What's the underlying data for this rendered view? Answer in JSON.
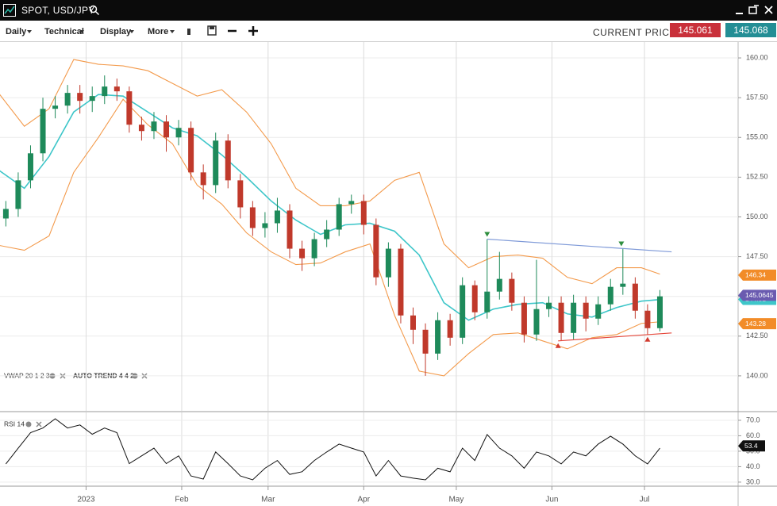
{
  "window": {
    "title": "SPOT, USD/JPY"
  },
  "toolbar": {
    "menus": [
      "Daily",
      "Technical",
      "Display",
      "More"
    ],
    "current_price_label": "CURRENT PRICE:",
    "bid": "145.061",
    "ask": "145.068"
  },
  "indicators": {
    "main": [
      "VWAP 20 1 2 3",
      "AUTO TREND 4 4 2"
    ],
    "rsi": "RSI 14"
  },
  "chart_data": [
    {
      "type": "candlestick",
      "x": [
        -25,
        -21,
        -17,
        -13,
        -9,
        -5,
        -1,
        3,
        7,
        11,
        15,
        19,
        23,
        27,
        31,
        35,
        39,
        43,
        47,
        51,
        55,
        59,
        63,
        67,
        71,
        75,
        79,
        83,
        87,
        91,
        95,
        99,
        103,
        107,
        111,
        115,
        119,
        123,
        127,
        131,
        135,
        139,
        143,
        147,
        151,
        155,
        159,
        163,
        167,
        171,
        175,
        179,
        183,
        187
      ],
      "open": [
        149.9,
        150.5,
        152.3,
        154.0,
        156.8,
        157.0,
        157.8,
        157.3,
        157.6,
        158.2,
        157.9,
        155.8,
        155.4,
        156.0,
        155.0,
        155.6,
        152.8,
        152.0,
        154.8,
        152.3,
        150.6,
        149.3,
        149.6,
        150.4,
        148.0,
        147.4,
        148.6,
        149.2,
        150.8,
        151.0,
        149.5,
        146.2,
        148.0,
        143.8,
        142.9,
        141.4,
        143.5,
        142.4,
        145.7,
        144.0,
        145.3,
        146.1,
        144.6,
        142.6,
        144.2,
        144.6,
        142.7,
        144.6,
        143.6,
        144.5,
        145.6,
        145.8,
        144.1,
        143.0
      ],
      "high": [
        151.0,
        152.8,
        154.5,
        157.5,
        157.6,
        158.3,
        158.3,
        158.2,
        158.9,
        158.7,
        158.2,
        156.3,
        156.6,
        156.4,
        156.1,
        156.0,
        153.3,
        155.3,
        155.2,
        152.7,
        151.0,
        150.3,
        151.2,
        150.8,
        148.5,
        149.0,
        149.8,
        151.2,
        151.4,
        151.4,
        149.9,
        148.4,
        148.3,
        144.3,
        143.3,
        144.0,
        143.9,
        146.2,
        146.0,
        148.6,
        147.8,
        146.5,
        145.0,
        147.3,
        145.0,
        145.0,
        145.1,
        145.0,
        145.0,
        146.1,
        148.0,
        146.2,
        144.5,
        145.4
      ],
      "low": [
        149.4,
        150.0,
        151.8,
        153.5,
        156.2,
        156.5,
        156.5,
        156.6,
        157.1,
        157.3,
        155.3,
        154.8,
        154.9,
        154.1,
        154.5,
        152.3,
        151.1,
        151.5,
        151.8,
        149.9,
        148.8,
        148.7,
        149.0,
        147.4,
        146.6,
        146.9,
        148.1,
        148.8,
        150.2,
        148.9,
        145.7,
        145.6,
        143.3,
        142.0,
        140.0,
        141.0,
        141.9,
        142.0,
        143.5,
        143.6,
        144.8,
        144.1,
        142.1,
        142.2,
        143.7,
        142.2,
        142.3,
        142.8,
        143.2,
        144.1,
        145.1,
        143.6,
        142.6,
        142.8
      ],
      "close": [
        150.5,
        152.3,
        154.0,
        156.8,
        157.0,
        157.8,
        157.3,
        157.6,
        158.2,
        157.9,
        155.8,
        155.4,
        156.0,
        155.0,
        155.6,
        152.8,
        152.0,
        154.8,
        152.3,
        150.6,
        149.3,
        149.6,
        150.4,
        148.0,
        147.4,
        148.6,
        149.2,
        150.8,
        151.0,
        149.5,
        146.2,
        148.0,
        143.8,
        142.9,
        141.4,
        143.5,
        142.4,
        145.7,
        144.0,
        145.3,
        146.1,
        144.6,
        142.6,
        144.2,
        144.6,
        142.7,
        144.6,
        143.6,
        144.5,
        145.6,
        145.8,
        144.1,
        143.0,
        145.0
      ],
      "up_color": "#1e8a5a",
      "down_color": "#c0392b",
      "band_x": [
        -27,
        -19,
        -11,
        -3,
        5,
        13,
        21,
        29,
        37,
        45,
        53,
        61,
        69,
        77,
        85,
        93,
        101,
        109,
        117,
        125,
        133,
        141,
        149,
        157,
        165,
        173,
        181,
        187
      ],
      "bands": [
        {
          "color": "#f39a4b",
          "values": [
            157.7,
            155.7,
            156.8,
            159.9,
            159.6,
            159.5,
            159.2,
            158.4,
            157.6,
            158.0,
            156.6,
            154.6,
            151.8,
            150.7,
            150.7,
            151.0,
            152.3,
            152.8,
            148.3,
            146.8,
            147.5,
            147.6,
            147.4,
            146.2,
            145.8,
            146.8,
            146.8,
            146.4
          ]
        },
        {
          "color": "#3ec6c9",
          "values": [
            152.9,
            151.8,
            153.8,
            156.6,
            157.7,
            157.6,
            156.6,
            155.6,
            155.1,
            153.9,
            152.5,
            151.0,
            149.8,
            148.9,
            149.5,
            149.6,
            149.1,
            147.6,
            144.6,
            143.5,
            144.2,
            144.5,
            144.6,
            143.9,
            143.7,
            144.3,
            144.7,
            144.8
          ]
        },
        {
          "color": "#f39a4b",
          "values": [
            148.2,
            147.9,
            148.8,
            152.8,
            155.0,
            157.4,
            155.8,
            154.6,
            152.0,
            150.8,
            149.0,
            147.8,
            147.0,
            147.1,
            147.8,
            148.3,
            143.8,
            140.3,
            140.0,
            141.4,
            142.6,
            142.7,
            142.2,
            141.7,
            142.4,
            142.6,
            143.3,
            143.4
          ]
        }
      ],
      "trendlines": [
        {
          "color": "#7f9ad8",
          "x": [
            131,
            190.8
          ],
          "y": [
            148.6,
            147.8
          ]
        },
        {
          "color": "#e5483b",
          "x": [
            154,
            190.8
          ],
          "y": [
            142.2,
            142.7
          ]
        }
      ],
      "markers": [
        {
          "shape": "down",
          "color": "#2f8f3f",
          "x": 131,
          "y": 148.6
        },
        {
          "shape": "down",
          "color": "#2f8f3f",
          "x": 174.5,
          "y": 148.0
        },
        {
          "shape": "up",
          "color": "#d23a2e",
          "x": 154,
          "y": 142.2
        },
        {
          "shape": "up",
          "color": "#d23a2e",
          "x": 183,
          "y": 142.6
        }
      ],
      "price_labels": [
        {
          "value": 146.34,
          "color": "#f28c28"
        },
        {
          "value": 144.81,
          "color": "#3ec6c9"
        },
        {
          "value": 145.0645,
          "color": "#6a5bb0"
        },
        {
          "value": 143.28,
          "color": "#f28c28"
        }
      ],
      "xlim": [
        -26.9,
        212.35
      ],
      "ylim": [
        137.8,
        161.0
      ],
      "xticks": [
        {
          "value": 1,
          "label": "2023"
        },
        {
          "value": 32,
          "label": "Feb"
        },
        {
          "value": 60,
          "label": "Mar"
        },
        {
          "value": 91,
          "label": "Apr"
        },
        {
          "value": 121,
          "label": "May"
        },
        {
          "value": 152,
          "label": "Jun"
        },
        {
          "value": 182,
          "label": "Jul"
        }
      ],
      "yticks": [
        {
          "value": 140,
          "label": "140.00"
        },
        {
          "value": 142.5,
          "label": "142.50"
        },
        {
          "value": 145,
          "label": "145.00"
        },
        {
          "value": 147.5,
          "label": "147.50"
        },
        {
          "value": 150,
          "label": "150.00"
        },
        {
          "value": 152.5,
          "label": "152.50"
        },
        {
          "value": 155,
          "label": "155.00"
        },
        {
          "value": 157.5,
          "label": "157.50"
        },
        {
          "value": 160,
          "label": "160.00"
        }
      ],
      "grid": true
    },
    {
      "type": "line",
      "x": [
        -25,
        -21,
        -17,
        -13,
        -9,
        -5,
        -1,
        3,
        7,
        11,
        15,
        19,
        23,
        27,
        31,
        35,
        39,
        43,
        47,
        51,
        55,
        59,
        63,
        67,
        71,
        75,
        79,
        83,
        87,
        91,
        95,
        99,
        103,
        107,
        111,
        115,
        119,
        123,
        127,
        131,
        135,
        139,
        143,
        147,
        151,
        155,
        159,
        163,
        167,
        171,
        175,
        179,
        183,
        187
      ],
      "series": [
        {
          "color": "#111111",
          "values": [
            41.8,
            52,
            62,
            65,
            71,
            65,
            67,
            61,
            65,
            62,
            42,
            47,
            52,
            42,
            47,
            34,
            32,
            49.5,
            42,
            34,
            31.5,
            39,
            44,
            35,
            36.7,
            44,
            49.5,
            54.6,
            52,
            49.5,
            34,
            44,
            34,
            32.6,
            31.5,
            39,
            36.7,
            52,
            44,
            60.8,
            52,
            47,
            39,
            49.5,
            47,
            41.8,
            49.5,
            47,
            54.6,
            59.7,
            54.6,
            47,
            41.8,
            52
          ]
        }
      ],
      "current": 53.4,
      "xlim": [
        -26.9,
        212.35
      ],
      "ylim": [
        27.9,
        75.1
      ],
      "yticks": [
        {
          "value": 30,
          "label": "30.0"
        },
        {
          "value": 40,
          "label": "40.0"
        },
        {
          "value": 50,
          "label": "50.0"
        },
        {
          "value": 60,
          "label": "60.0"
        },
        {
          "value": 70,
          "label": "70.0"
        }
      ],
      "grid": true
    }
  ]
}
